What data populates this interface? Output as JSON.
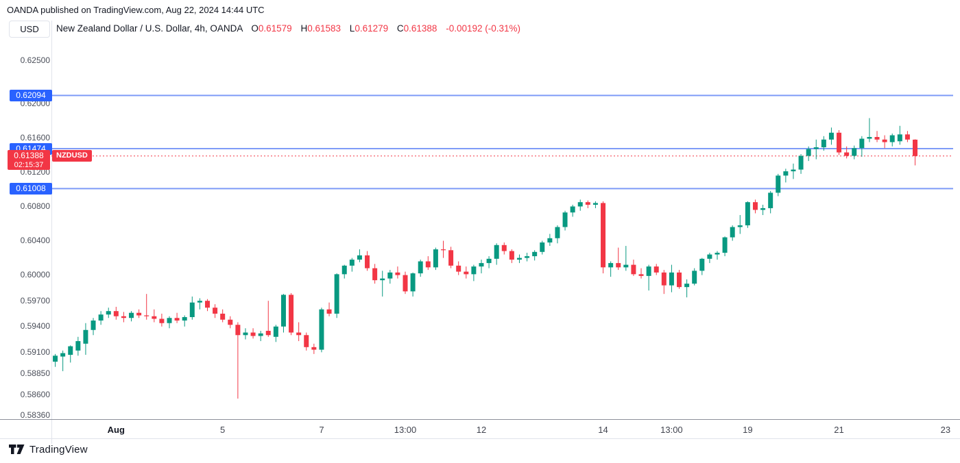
{
  "header": {
    "attribution": "OANDA published on TradingView.com, Aug 22, 2024 14:44 UTC"
  },
  "symbol_bar": {
    "currency_button": "USD",
    "title": "New Zealand Dollar / U.S. Dollar, 4h, OANDA",
    "ohlc": {
      "o_label": "O",
      "o_value": "0.61579",
      "h_label": "H",
      "h_value": "0.61583",
      "l_label": "L",
      "l_value": "0.61279",
      "c_label": "C",
      "c_value": "0.61388",
      "change": "-0.00192 (-0.31%)"
    }
  },
  "footer": {
    "brand": "TradingView"
  },
  "chart_data": {
    "type": "candlestick",
    "symbol": "NZDUSD",
    "name": "New Zealand Dollar / U.S. Dollar",
    "timeframe": "4h",
    "exchange": "OANDA",
    "ylim": [
      0.5832,
      0.6276
    ],
    "grid": false,
    "price_axis_ticks": [
      "0.62500",
      "0.62000",
      "0.61600",
      "0.61200",
      "0.60800",
      "0.60400",
      "0.60000",
      "0.59700",
      "0.59400",
      "0.59100",
      "0.58850",
      "0.58600",
      "0.58360"
    ],
    "time_ticks": [
      {
        "label": "Aug",
        "slot": 8,
        "bold": true
      },
      {
        "label": "5",
        "slot": 22
      },
      {
        "label": "7",
        "slot": 35
      },
      {
        "label": "13:00",
        "slot": 46
      },
      {
        "label": "12",
        "slot": 56
      },
      {
        "label": "14",
        "slot": 72
      },
      {
        "label": "13:00",
        "slot": 81
      },
      {
        "label": "19",
        "slot": 91
      },
      {
        "label": "21",
        "slot": 103
      },
      {
        "label": "23",
        "slot": 117
      }
    ],
    "levels": [
      {
        "price": 0.62094,
        "label": "0.62094"
      },
      {
        "price": 0.61474,
        "label": "0.61474"
      },
      {
        "price": 0.61008,
        "label": "0.61008"
      }
    ],
    "current": {
      "price": 0.61388,
      "label": "0.61388",
      "countdown": "02:15:37",
      "symbol_tag": "NZDUSD"
    },
    "colors": {
      "up": "#089981",
      "down": "#F23645",
      "level_line": "#7E9BF7",
      "level_label_bg": "#2962FF",
      "current_line": "#F23645",
      "current_label_bg": "#F23645"
    },
    "ohlc": [
      [
        0.5899,
        0.5908,
        0.5893,
        0.5906
      ],
      [
        0.5905,
        0.5912,
        0.5888,
        0.5909
      ],
      [
        0.5907,
        0.5918,
        0.5898,
        0.5917
      ],
      [
        0.5912,
        0.5928,
        0.5906,
        0.5923
      ],
      [
        0.592,
        0.5944,
        0.5907,
        0.5936
      ],
      [
        0.5936,
        0.595,
        0.593,
        0.5947
      ],
      [
        0.5947,
        0.5958,
        0.5942,
        0.5954
      ],
      [
        0.5954,
        0.5962,
        0.595,
        0.5958
      ],
      [
        0.5958,
        0.5963,
        0.5948,
        0.5952
      ],
      [
        0.5952,
        0.5957,
        0.5945,
        0.595
      ],
      [
        0.595,
        0.5958,
        0.5946,
        0.5956
      ],
      [
        0.5956,
        0.596,
        0.595,
        0.5953
      ],
      [
        0.5953,
        0.5978,
        0.5948,
        0.5952
      ],
      [
        0.5952,
        0.596,
        0.5945,
        0.5949
      ],
      [
        0.5949,
        0.5955,
        0.594,
        0.5944
      ],
      [
        0.5944,
        0.5952,
        0.5938,
        0.595
      ],
      [
        0.595,
        0.5956,
        0.5944,
        0.5947
      ],
      [
        0.5947,
        0.5953,
        0.594,
        0.5951
      ],
      [
        0.5951,
        0.5975,
        0.5948,
        0.5968
      ],
      [
        0.5968,
        0.5973,
        0.596,
        0.597
      ],
      [
        0.597,
        0.5972,
        0.5958,
        0.5962
      ],
      [
        0.5962,
        0.5966,
        0.595,
        0.5955
      ],
      [
        0.5955,
        0.596,
        0.5945,
        0.5948
      ],
      [
        0.5948,
        0.5952,
        0.5938,
        0.5942
      ],
      [
        0.5942,
        0.5945,
        0.5856,
        0.593
      ],
      [
        0.593,
        0.5938,
        0.5925,
        0.5933
      ],
      [
        0.5933,
        0.5938,
        0.5926,
        0.5929
      ],
      [
        0.5929,
        0.5935,
        0.5923,
        0.5932
      ],
      [
        0.5935,
        0.597,
        0.5928,
        0.593
      ],
      [
        0.5928,
        0.5942,
        0.5922,
        0.594
      ],
      [
        0.594,
        0.5978,
        0.5933,
        0.5977
      ],
      [
        0.5977,
        0.5979,
        0.593,
        0.5933
      ],
      [
        0.5933,
        0.5945,
        0.5923,
        0.593
      ],
      [
        0.593,
        0.5933,
        0.5912,
        0.5916
      ],
      [
        0.5916,
        0.592,
        0.5908,
        0.5913
      ],
      [
        0.5913,
        0.5962,
        0.591,
        0.596
      ],
      [
        0.596,
        0.5968,
        0.5952,
        0.5955
      ],
      [
        0.5955,
        0.6002,
        0.595,
        0.6001
      ],
      [
        0.6001,
        0.6012,
        0.5996,
        0.6011
      ],
      [
        0.6011,
        0.602,
        0.6004,
        0.6018
      ],
      [
        0.6018,
        0.603,
        0.6015,
        0.6023
      ],
      [
        0.6023,
        0.6028,
        0.6005,
        0.6008
      ],
      [
        0.6008,
        0.6013,
        0.599,
        0.5994
      ],
      [
        0.5994,
        0.6005,
        0.5975,
        0.5996
      ],
      [
        0.5996,
        0.6006,
        0.599,
        0.6003
      ],
      [
        0.6003,
        0.601,
        0.5996,
        0.6
      ],
      [
        0.6,
        0.6004,
        0.5978,
        0.5981
      ],
      [
        0.5981,
        0.6003,
        0.5975,
        0.6002
      ],
      [
        0.6002,
        0.6018,
        0.5998,
        0.6016
      ],
      [
        0.6016,
        0.6022,
        0.6006,
        0.6009
      ],
      [
        0.6009,
        0.6032,
        0.6006,
        0.603
      ],
      [
        0.603,
        0.604,
        0.602,
        0.6029
      ],
      [
        0.6029,
        0.6033,
        0.6008,
        0.6011
      ],
      [
        0.6011,
        0.6016,
        0.6,
        0.6004
      ],
      [
        0.6004,
        0.601,
        0.5996,
        0.6001
      ],
      [
        0.6001,
        0.6012,
        0.5993,
        0.601
      ],
      [
        0.601,
        0.6018,
        0.6002,
        0.6014
      ],
      [
        0.6014,
        0.6022,
        0.6008,
        0.6019
      ],
      [
        0.6019,
        0.6037,
        0.6012,
        0.6035
      ],
      [
        0.6035,
        0.6038,
        0.6024,
        0.6028
      ],
      [
        0.6028,
        0.603,
        0.6014,
        0.6018
      ],
      [
        0.6018,
        0.6024,
        0.6014,
        0.602
      ],
      [
        0.602,
        0.6026,
        0.6016,
        0.6022
      ],
      [
        0.6022,
        0.6029,
        0.6017,
        0.6027
      ],
      [
        0.6027,
        0.604,
        0.6024,
        0.6038
      ],
      [
        0.6038,
        0.6048,
        0.6034,
        0.6043
      ],
      [
        0.6043,
        0.6058,
        0.6037,
        0.6056
      ],
      [
        0.6056,
        0.6075,
        0.6052,
        0.6073
      ],
      [
        0.6073,
        0.6082,
        0.6068,
        0.608
      ],
      [
        0.608,
        0.6088,
        0.6075,
        0.6085
      ],
      [
        0.6085,
        0.6087,
        0.6078,
        0.6082
      ],
      [
        0.6082,
        0.6086,
        0.6078,
        0.6084
      ],
      [
        0.6084,
        0.6086,
        0.6002,
        0.6009
      ],
      [
        0.6009,
        0.6016,
        0.5998,
        0.6014
      ],
      [
        0.6014,
        0.6032,
        0.6006,
        0.6009
      ],
      [
        0.6009,
        0.6034,
        0.6005,
        0.6012
      ],
      [
        0.6012,
        0.6018,
        0.5999,
        0.6001
      ],
      [
        0.6001,
        0.6008,
        0.5996,
        0.5999
      ],
      [
        0.5999,
        0.6012,
        0.5982,
        0.601
      ],
      [
        0.601,
        0.6013,
        0.6,
        0.6003
      ],
      [
        0.6003,
        0.6006,
        0.5978,
        0.5988
      ],
      [
        0.5988,
        0.6012,
        0.598,
        0.6003
      ],
      [
        0.6003,
        0.6006,
        0.5984,
        0.5986
      ],
      [
        0.5986,
        0.5995,
        0.5974,
        0.599
      ],
      [
        0.599,
        0.6008,
        0.5988,
        0.6005
      ],
      [
        0.6005,
        0.602,
        0.6,
        0.6019
      ],
      [
        0.6019,
        0.6026,
        0.6014,
        0.6024
      ],
      [
        0.6024,
        0.6028,
        0.6018,
        0.6026
      ],
      [
        0.6026,
        0.6045,
        0.6022,
        0.6044
      ],
      [
        0.6044,
        0.6058,
        0.604,
        0.6056
      ],
      [
        0.6056,
        0.607,
        0.6048,
        0.6058
      ],
      [
        0.6058,
        0.6086,
        0.6055,
        0.6085
      ],
      [
        0.6085,
        0.6088,
        0.6072,
        0.6076
      ],
      [
        0.6076,
        0.6082,
        0.607,
        0.6078
      ],
      [
        0.6078,
        0.6098,
        0.6072,
        0.6096
      ],
      [
        0.6096,
        0.6118,
        0.6092,
        0.6116
      ],
      [
        0.6116,
        0.6124,
        0.6108,
        0.6121
      ],
      [
        0.6121,
        0.613,
        0.6112,
        0.6123
      ],
      [
        0.6123,
        0.6141,
        0.6118,
        0.6139
      ],
      [
        0.6139,
        0.615,
        0.6133,
        0.6147
      ],
      [
        0.6147,
        0.6158,
        0.6135,
        0.6149
      ],
      [
        0.6149,
        0.6162,
        0.6145,
        0.6158
      ],
      [
        0.6158,
        0.6172,
        0.6152,
        0.6166
      ],
      [
        0.6166,
        0.6169,
        0.614,
        0.6143
      ],
      [
        0.6143,
        0.615,
        0.6136,
        0.6139
      ],
      [
        0.6139,
        0.6151,
        0.6135,
        0.6148
      ],
      [
        0.6148,
        0.6162,
        0.6138,
        0.6159
      ],
      [
        0.6159,
        0.6183,
        0.6155,
        0.6161
      ],
      [
        0.6161,
        0.6168,
        0.6155,
        0.6158
      ],
      [
        0.6158,
        0.6163,
        0.6148,
        0.6155
      ],
      [
        0.6155,
        0.6165,
        0.615,
        0.6163
      ],
      [
        0.6156,
        0.6174,
        0.6152,
        0.6164
      ],
      [
        0.6164,
        0.6168,
        0.6155,
        0.6158
      ],
      [
        0.61579,
        0.61583,
        0.61279,
        0.61388
      ]
    ]
  }
}
